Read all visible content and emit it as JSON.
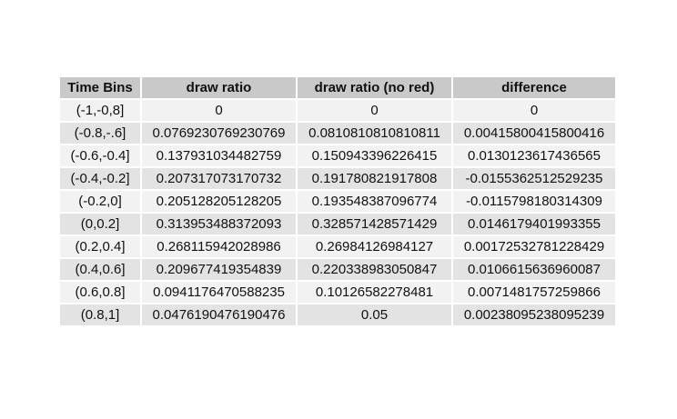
{
  "chart_data": {
    "type": "table",
    "columns": [
      "Time Bins",
      "draw ratio",
      "draw ratio (no red)",
      "difference"
    ],
    "rows": [
      [
        "(-1,-0,8]",
        "0",
        "0",
        "0"
      ],
      [
        "(-0.8,-.6]",
        "0.0769230769230769",
        "0.0810810810810811",
        "0.00415800415800416"
      ],
      [
        "(-0.6,-0.4]",
        "0.137931034482759",
        "0.150943396226415",
        "0.0130123617436565"
      ],
      [
        "(-0.4,-0.2]",
        "0.207317073170732",
        "0.191780821917808",
        "-0.0155362512529235"
      ],
      [
        "(-0.2,0]",
        "0.205128205128205",
        "0.193548387096774",
        "-0.0115798180314309"
      ],
      [
        "(0,0.2]",
        "0.313953488372093",
        "0.328571428571429",
        "0.0146179401993355"
      ],
      [
        "(0.2,0.4]",
        "0.268115942028986",
        "0.26984126984127",
        "0.00172532781228429"
      ],
      [
        "(0.4,0.6]",
        "0.209677419354839",
        "0.220338983050847",
        "0.0106615636960087"
      ],
      [
        "(0.6,0.8]",
        "0.0941176470588235",
        "0.10126582278481",
        "0.0071481757259866"
      ],
      [
        "(0.8,1]",
        "0.0476190476190476",
        "0.05",
        "0.00238095238095239"
      ]
    ],
    "colors": {
      "header_bg": "#c9c9c9",
      "row_odd_bg": "#f2f2f2",
      "row_even_bg": "#e3e3e3",
      "text": "#111111"
    }
  }
}
